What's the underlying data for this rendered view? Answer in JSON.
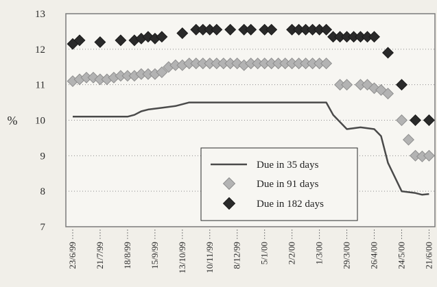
{
  "chart_data": {
    "type": "line",
    "title": "",
    "xlabel": "",
    "ylabel": "%",
    "ylim": [
      7,
      13
    ],
    "yticks": [
      7,
      8,
      9,
      10,
      11,
      12,
      13
    ],
    "x_range": [
      "1999-06-16",
      "2000-06-27"
    ],
    "xticks": [
      {
        "label": "23/6/99",
        "date": "1999-06-23"
      },
      {
        "label": "21/7/99",
        "date": "1999-07-21"
      },
      {
        "label": "18/8/99",
        "date": "1999-08-18"
      },
      {
        "label": "15/9/99",
        "date": "1999-09-15"
      },
      {
        "label": "13/10/99",
        "date": "1999-10-13"
      },
      {
        "label": "10/11/99",
        "date": "1999-11-10"
      },
      {
        "label": "8/12/99",
        "date": "1999-12-08"
      },
      {
        "label": "5/1/00",
        "date": "2000-01-05"
      },
      {
        "label": "2/2/00",
        "date": "2000-02-02"
      },
      {
        "label": "1/3/00",
        "date": "2000-03-01"
      },
      {
        "label": "29/3/00",
        "date": "2000-03-29"
      },
      {
        "label": "26/4/00",
        "date": "2000-04-26"
      },
      {
        "label": "24/5/00",
        "date": "2000-05-24"
      },
      {
        "label": "21/6/00",
        "date": "2000-06-21"
      }
    ],
    "grid": "horizontal-dotted",
    "legend_position": "bottom-right",
    "colors": {
      "line35": "#4a4a4a",
      "marker91": "#b3b3b3",
      "marker182": "#2a2a2a",
      "plot_bg": "#f7f6f2",
      "axis": "#7a7a7a"
    },
    "series": [
      {
        "name": "Due in 35 days",
        "style": "line",
        "points": [
          [
            "1999-06-23",
            10.1
          ],
          [
            "1999-07-21",
            10.1
          ],
          [
            "1999-08-18",
            10.1
          ],
          [
            "1999-08-25",
            10.15
          ],
          [
            "1999-09-01",
            10.25
          ],
          [
            "1999-09-08",
            10.3
          ],
          [
            "1999-09-22",
            10.35
          ],
          [
            "1999-10-06",
            10.4
          ],
          [
            "1999-10-20",
            10.5
          ],
          [
            "1999-11-10",
            10.5
          ],
          [
            "1999-12-08",
            10.5
          ],
          [
            "2000-01-05",
            10.5
          ],
          [
            "2000-02-02",
            10.5
          ],
          [
            "2000-03-01",
            10.5
          ],
          [
            "2000-03-08",
            10.5
          ],
          [
            "2000-03-15",
            10.15
          ],
          [
            "2000-03-29",
            9.75
          ],
          [
            "2000-04-12",
            9.8
          ],
          [
            "2000-04-26",
            9.75
          ],
          [
            "2000-05-03",
            9.55
          ],
          [
            "2000-05-10",
            8.8
          ],
          [
            "2000-05-24",
            8.0
          ],
          [
            "2000-06-07",
            7.95
          ],
          [
            "2000-06-14",
            7.9
          ],
          [
            "2000-06-21",
            7.92
          ]
        ]
      },
      {
        "name": "Due in 91 days",
        "style": "marker-diamond",
        "points": [
          [
            "1999-06-23",
            11.1
          ],
          [
            "1999-06-30",
            11.15
          ],
          [
            "1999-07-07",
            11.2
          ],
          [
            "1999-07-14",
            11.2
          ],
          [
            "1999-07-21",
            11.15
          ],
          [
            "1999-07-28",
            11.15
          ],
          [
            "1999-08-04",
            11.2
          ],
          [
            "1999-08-11",
            11.25
          ],
          [
            "1999-08-18",
            11.25
          ],
          [
            "1999-08-25",
            11.25
          ],
          [
            "1999-09-01",
            11.3
          ],
          [
            "1999-09-08",
            11.3
          ],
          [
            "1999-09-15",
            11.3
          ],
          [
            "1999-09-22",
            11.35
          ],
          [
            "1999-09-29",
            11.5
          ],
          [
            "1999-10-06",
            11.55
          ],
          [
            "1999-10-13",
            11.55
          ],
          [
            "1999-10-20",
            11.6
          ],
          [
            "1999-10-27",
            11.6
          ],
          [
            "1999-11-03",
            11.6
          ],
          [
            "1999-11-10",
            11.6
          ],
          [
            "1999-11-17",
            11.6
          ],
          [
            "1999-11-24",
            11.6
          ],
          [
            "1999-12-01",
            11.6
          ],
          [
            "1999-12-08",
            11.6
          ],
          [
            "1999-12-15",
            11.55
          ],
          [
            "1999-12-22",
            11.6
          ],
          [
            "1999-12-29",
            11.6
          ],
          [
            "2000-01-05",
            11.6
          ],
          [
            "2000-01-12",
            11.6
          ],
          [
            "2000-01-19",
            11.6
          ],
          [
            "2000-01-26",
            11.6
          ],
          [
            "2000-02-02",
            11.6
          ],
          [
            "2000-02-09",
            11.6
          ],
          [
            "2000-02-16",
            11.6
          ],
          [
            "2000-02-23",
            11.6
          ],
          [
            "2000-03-01",
            11.6
          ],
          [
            "2000-03-08",
            11.6
          ],
          [
            "2000-03-22",
            11.0
          ],
          [
            "2000-03-29",
            11.0
          ],
          [
            "2000-04-12",
            11.0
          ],
          [
            "2000-04-19",
            11.0
          ],
          [
            "2000-04-26",
            10.9
          ],
          [
            "2000-05-03",
            10.85
          ],
          [
            "2000-05-10",
            10.75
          ],
          [
            "2000-05-24",
            10.0
          ],
          [
            "2000-05-31",
            9.45
          ],
          [
            "2000-06-07",
            9.0
          ],
          [
            "2000-06-14",
            8.98
          ],
          [
            "2000-06-21",
            9.0
          ]
        ]
      },
      {
        "name": "Due in 182 days",
        "style": "marker-diamond",
        "points": [
          [
            "1999-06-23",
            12.15
          ],
          [
            "1999-06-30",
            12.25
          ],
          [
            "1999-07-21",
            12.2
          ],
          [
            "1999-08-11",
            12.25
          ],
          [
            "1999-08-25",
            12.25
          ],
          [
            "1999-09-01",
            12.3
          ],
          [
            "1999-09-08",
            12.35
          ],
          [
            "1999-09-15",
            12.3
          ],
          [
            "1999-09-22",
            12.35
          ],
          [
            "1999-10-13",
            12.45
          ],
          [
            "1999-10-27",
            12.55
          ],
          [
            "1999-11-03",
            12.55
          ],
          [
            "1999-11-10",
            12.55
          ],
          [
            "1999-11-17",
            12.55
          ],
          [
            "1999-12-01",
            12.55
          ],
          [
            "1999-12-15",
            12.55
          ],
          [
            "1999-12-22",
            12.55
          ],
          [
            "2000-01-05",
            12.55
          ],
          [
            "2000-01-12",
            12.55
          ],
          [
            "2000-02-02",
            12.55
          ],
          [
            "2000-02-09",
            12.55
          ],
          [
            "2000-02-16",
            12.55
          ],
          [
            "2000-02-23",
            12.55
          ],
          [
            "2000-03-01",
            12.55
          ],
          [
            "2000-03-08",
            12.55
          ],
          [
            "2000-03-15",
            12.35
          ],
          [
            "2000-03-22",
            12.35
          ],
          [
            "2000-03-29",
            12.35
          ],
          [
            "2000-04-05",
            12.35
          ],
          [
            "2000-04-12",
            12.35
          ],
          [
            "2000-04-19",
            12.35
          ],
          [
            "2000-04-26",
            12.35
          ],
          [
            "2000-05-10",
            11.9
          ],
          [
            "2000-05-24",
            11.0
          ],
          [
            "2000-06-07",
            10.0
          ],
          [
            "2000-06-21",
            10.0
          ]
        ]
      }
    ]
  }
}
